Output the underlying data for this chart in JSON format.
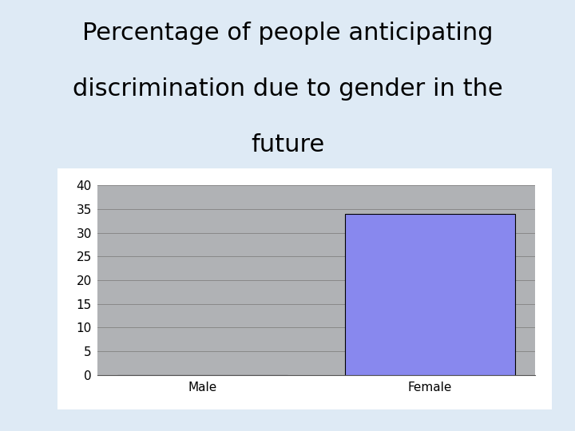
{
  "title_line1": "Percentage of people anticipating",
  "title_line2": "discrimination due to gender in the",
  "title_line3": "future",
  "categories": [
    "Male",
    "Female"
  ],
  "values": [
    0,
    34
  ],
  "bar_color_male": "#b0b0b0",
  "bar_color_female": "#8888ee",
  "plot_bg_color": "#b0b2b5",
  "fig_bg_color": "#deeaf5",
  "white_box_color": "#ffffff",
  "ylim": [
    0,
    40
  ],
  "yticks": [
    0,
    5,
    10,
    15,
    20,
    25,
    30,
    35,
    40
  ],
  "title_fontsize": 22,
  "tick_fontsize": 11,
  "bar_width": 0.5
}
